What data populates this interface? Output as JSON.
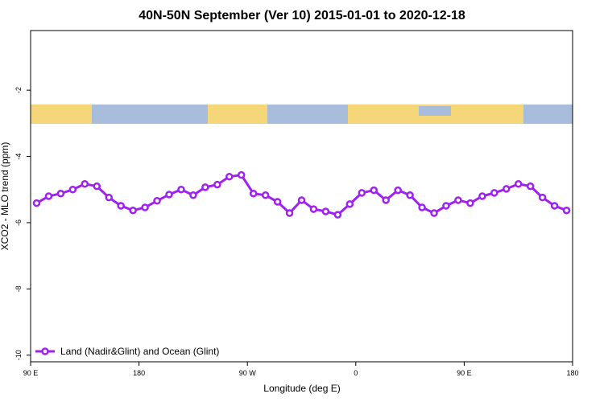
{
  "chart_data": {
    "type": "line",
    "title": "40N-50N September (Ver 10)   2015-01-01 to 2020-12-18",
    "xlabel": "Longitude (deg E)",
    "ylabel": "XCO2 - MLO trend (ppm)",
    "xlim": [
      90,
      540
    ],
    "ylim": [
      -10.2,
      -0.2
    ],
    "xticks": [
      {
        "value": 90,
        "label": "90 E"
      },
      180,
      {
        "value": 270,
        "label": "90 W"
      },
      {
        "value": 360,
        "label": "0"
      },
      {
        "value": 450,
        "label": "90 E"
      },
      {
        "value": 540,
        "label": "180"
      }
    ],
    "yticks": [
      -2,
      -4,
      -6,
      -8,
      -10
    ],
    "x": [
      95,
      105,
      115,
      125,
      135,
      145,
      155,
      165,
      175,
      185,
      195,
      205,
      215,
      225,
      235,
      245,
      255,
      265,
      275,
      285,
      295,
      305,
      315,
      325,
      335,
      345,
      355,
      365,
      375,
      385,
      395,
      405,
      415,
      425,
      435,
      445,
      455,
      465,
      475,
      485,
      495,
      505,
      515,
      525,
      535
    ],
    "series": [
      {
        "name": "Land (Nadir&Glint) and Ocean (Glint)",
        "color": "#a020f0",
        "values": [
          -5.41,
          -5.2,
          -5.12,
          -5.0,
          -4.83,
          -4.9,
          -5.24,
          -5.49,
          -5.63,
          -5.54,
          -5.34,
          -5.15,
          -5.0,
          -5.17,
          -4.93,
          -4.85,
          -4.61,
          -4.56,
          -5.12,
          -5.17,
          -5.37,
          -5.71,
          -5.32,
          -5.59,
          -5.66,
          -5.76,
          -5.44,
          -5.1,
          -5.02,
          -5.32,
          -5.02,
          -5.17,
          -5.54,
          -5.71,
          -5.49,
          -5.32,
          -5.41,
          -5.2,
          -5.1,
          -4.98,
          -4.83,
          -4.9,
          -5.24,
          -5.49,
          -5.63
        ]
      }
    ],
    "legend": "bottom-left"
  }
}
